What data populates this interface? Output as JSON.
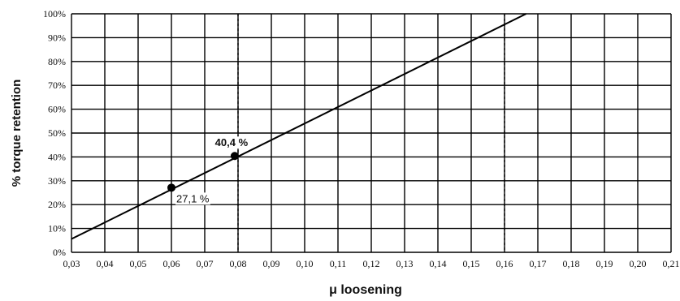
{
  "chart_data": {
    "type": "line",
    "title": "",
    "xlabel": "μ loosening",
    "ylabel": "% torque retention",
    "xlim": [
      0.03,
      0.21
    ],
    "ylim": [
      0,
      100
    ],
    "x_tick_labels": [
      "0,03",
      "0,04",
      "0,05",
      "0,06",
      "0,07",
      "0,08",
      "0,09",
      "0,10",
      "0,11",
      "0,12",
      "0,13",
      "0,14",
      "0,15",
      "0,16",
      "0,17",
      "0,18",
      "0,19",
      "0,20",
      "0,21"
    ],
    "y_tick_labels": [
      "0%",
      "10%",
      "20%",
      "30%",
      "40%",
      "50%",
      "60%",
      "70%",
      "80%",
      "90%",
      "100%"
    ],
    "grid": true,
    "series": [
      {
        "x": [
          0.03,
          0.1665
        ],
        "y": [
          5.6,
          100
        ]
      }
    ],
    "reference_lines_x": [
      0.08,
      0.16
    ],
    "markers": [
      {
        "x": 0.06,
        "y": 27.1,
        "label": "27,1 %"
      },
      {
        "x": 0.079,
        "y": 40.4,
        "label": "40,4 %"
      }
    ]
  }
}
